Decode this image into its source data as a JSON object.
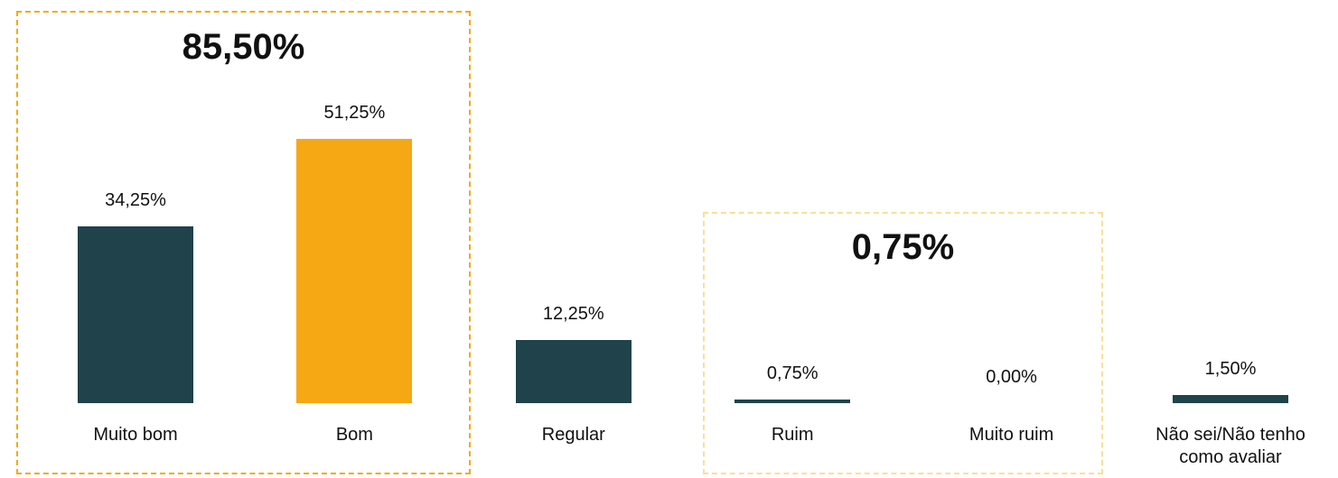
{
  "chart_data": {
    "type": "bar",
    "categories": [
      "Muito bom",
      "Bom",
      "Regular",
      "Ruim",
      "Muito ruim",
      "Não sei/Não tenho como avaliar"
    ],
    "values": [
      34.25,
      51.25,
      12.25,
      0.75,
      0.0,
      1.5
    ],
    "value_labels": [
      "34,25%",
      "51,25%",
      "12,25%",
      "0,75%",
      "0,00%",
      "1,50%"
    ],
    "colors": [
      "#1f424b",
      "#f5a814",
      "#1f424b",
      "#1f424b",
      "#1f424b",
      "#1f424b"
    ],
    "ylim": [
      0,
      60
    ],
    "annotations": [
      {
        "text": "85,50%",
        "color": "#f5a814"
      },
      {
        "text": "0,75%",
        "color": "#fbdf97"
      }
    ]
  }
}
